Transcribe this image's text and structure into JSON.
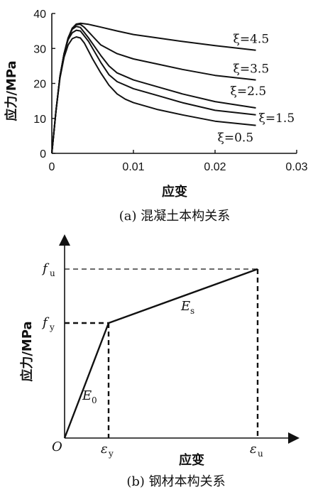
{
  "chart_data": [
    {
      "type": "line",
      "caption": "(a) 混凝土本构关系",
      "xlabel": "应变",
      "ylabel": "应力/MPa",
      "xlim": [
        0,
        0.03
      ],
      "ylim": [
        0,
        40
      ],
      "xticks": [
        "0",
        "0.01",
        "0.02",
        "0.03"
      ],
      "yticks": [
        "0",
        "10",
        "20",
        "30",
        "40"
      ],
      "grid": false,
      "series": [
        {
          "name": "ξ=4.5",
          "points": [
            [
              0,
              0
            ],
            [
              0.0005,
              12
            ],
            [
              0.001,
              22
            ],
            [
              0.0015,
              28.5
            ],
            [
              0.002,
              33
            ],
            [
              0.0025,
              35.8
            ],
            [
              0.003,
              37
            ],
            [
              0.0035,
              37.2
            ],
            [
              0.0045,
              36.9
            ],
            [
              0.006,
              36.1
            ],
            [
              0.008,
              35
            ],
            [
              0.01,
              34
            ],
            [
              0.013,
              33
            ],
            [
              0.016,
              32
            ],
            [
              0.02,
              30.8
            ],
            [
              0.025,
              29.5
            ]
          ]
        },
        {
          "name": "ξ=3.5",
          "points": [
            [
              0,
              0
            ],
            [
              0.0005,
              12
            ],
            [
              0.001,
              22
            ],
            [
              0.0015,
              28.5
            ],
            [
              0.002,
              33
            ],
            [
              0.0025,
              35.8
            ],
            [
              0.003,
              36.8
            ],
            [
              0.0035,
              36.9
            ],
            [
              0.004,
              36
            ],
            [
              0.005,
              33.5
            ],
            [
              0.006,
              31
            ],
            [
              0.008,
              28.5
            ],
            [
              0.01,
              27
            ],
            [
              0.013,
              25.5
            ],
            [
              0.016,
              24
            ],
            [
              0.02,
              22.3
            ],
            [
              0.025,
              21
            ]
          ]
        },
        {
          "name": "ξ=2.5",
          "points": [
            [
              0,
              0
            ],
            [
              0.0005,
              12
            ],
            [
              0.001,
              22
            ],
            [
              0.0015,
              28.5
            ],
            [
              0.002,
              33
            ],
            [
              0.0025,
              35.5
            ],
            [
              0.003,
              36.3
            ],
            [
              0.0035,
              36
            ],
            [
              0.0045,
              33
            ],
            [
              0.006,
              28
            ],
            [
              0.007,
              25
            ],
            [
              0.008,
              23
            ],
            [
              0.01,
              21
            ],
            [
              0.013,
              19
            ],
            [
              0.016,
              17
            ],
            [
              0.02,
              14.8
            ],
            [
              0.025,
              13
            ]
          ]
        },
        {
          "name": "ξ=1.5",
          "points": [
            [
              0,
              0
            ],
            [
              0.0005,
              12
            ],
            [
              0.001,
              22
            ],
            [
              0.0015,
              28.5
            ],
            [
              0.002,
              32.5
            ],
            [
              0.0025,
              34.5
            ],
            [
              0.003,
              35.2
            ],
            [
              0.0035,
              35
            ],
            [
              0.0045,
              32
            ],
            [
              0.006,
              26
            ],
            [
              0.007,
              22.5
            ],
            [
              0.008,
              20.5
            ],
            [
              0.01,
              18.5
            ],
            [
              0.013,
              16.5
            ],
            [
              0.016,
              14.5
            ],
            [
              0.02,
              12.3
            ],
            [
              0.025,
              11
            ]
          ]
        },
        {
          "name": "ξ=0.5",
          "points": [
            [
              0,
              0
            ],
            [
              0.0005,
              12
            ],
            [
              0.001,
              21.5
            ],
            [
              0.0015,
              27.5
            ],
            [
              0.002,
              31
            ],
            [
              0.0025,
              32.8
            ],
            [
              0.003,
              33.3
            ],
            [
              0.0035,
              33
            ],
            [
              0.004,
              31.5
            ],
            [
              0.005,
              27
            ],
            [
              0.006,
              23
            ],
            [
              0.007,
              19.5
            ],
            [
              0.008,
              17
            ],
            [
              0.009,
              15.5
            ],
            [
              0.01,
              14.5
            ],
            [
              0.013,
              12.5
            ],
            [
              0.016,
              11
            ],
            [
              0.02,
              9.2
            ],
            [
              0.025,
              8
            ]
          ]
        }
      ]
    },
    {
      "type": "line",
      "caption": "(b) 钢材本构关系",
      "xlabel": "应变",
      "ylabel": "应力/MPa",
      "origin_label": "O",
      "x_marks": [
        {
          "sym": "ε",
          "sub": "y"
        },
        {
          "sym": "ε",
          "sub": "u"
        }
      ],
      "y_marks": [
        {
          "sym": "f",
          "sub": "y"
        },
        {
          "sym": "f",
          "sub": "u"
        }
      ],
      "segments": [
        {
          "sym": "E",
          "sub": "0"
        },
        {
          "sym": "E",
          "sub": "s"
        }
      ]
    }
  ]
}
